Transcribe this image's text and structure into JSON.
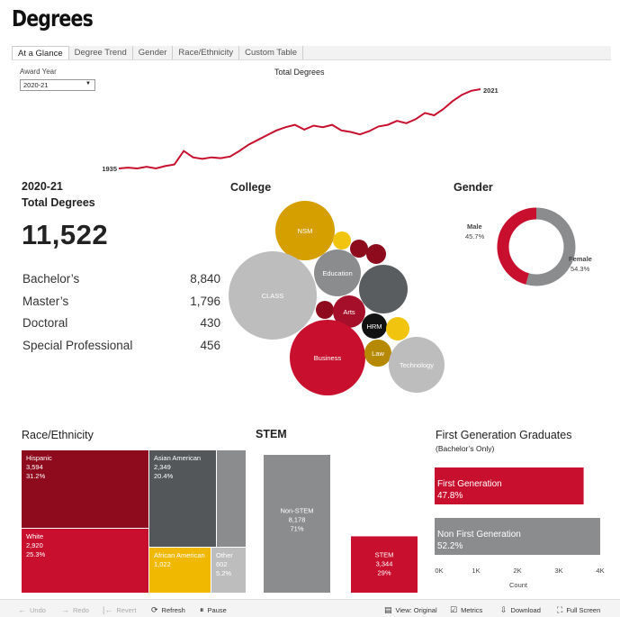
{
  "page": {
    "title": "Degrees"
  },
  "tabs": [
    "At a Glance",
    "Degree Trend",
    "Gender",
    "Race/Ethnicity",
    "Custom Table"
  ],
  "filter": {
    "label": "Award Year",
    "value": "2020-21"
  },
  "trend": {
    "title": "Total Degrees",
    "start_label": "1935",
    "end_label": "2021",
    "series": [
      0.0,
      0.01,
      0.0,
      0.02,
      0.0,
      0.03,
      0.05,
      0.22,
      0.14,
      0.12,
      0.14,
      0.13,
      0.15,
      0.22,
      0.3,
      0.36,
      0.42,
      0.48,
      0.52,
      0.55,
      0.49,
      0.54,
      0.52,
      0.55,
      0.48,
      0.46,
      0.43,
      0.47,
      0.53,
      0.55,
      0.6,
      0.57,
      0.62,
      0.7,
      0.67,
      0.75,
      0.85,
      0.93,
      0.98,
      1.0
    ],
    "color": "#c8102e"
  },
  "summary": {
    "year": "2020-21",
    "label": "Total Degrees",
    "total": "11,522",
    "rows": [
      {
        "label": "Bachelor’s",
        "value": "8,840"
      },
      {
        "label": "Master’s",
        "value": "1,796"
      },
      {
        "label": "Doctoral",
        "value": "430"
      },
      {
        "label": "Special Professional",
        "value": "456"
      }
    ]
  },
  "college": {
    "title": "College",
    "bubbles": [
      {
        "label": "NSM",
        "color": "#d69f00"
      },
      {
        "label": "",
        "color": "#f1c40f"
      },
      {
        "label": "",
        "color": "#8e0b1d"
      },
      {
        "label": "",
        "color": "#8e0b1d"
      },
      {
        "label": "CLASS",
        "color": "#bdbdbd"
      },
      {
        "label": "Education",
        "color": "#8a8c8e"
      },
      {
        "label": "",
        "color": "#5a5d60"
      },
      {
        "label": "",
        "color": "#8e0b1d"
      },
      {
        "label": "Arts",
        "color": "#a50f2a"
      },
      {
        "label": "HRM",
        "color": "#111111"
      },
      {
        "label": "",
        "color": "#f1c40f"
      },
      {
        "label": "Business",
        "color": "#c8102e"
      },
      {
        "label": "Law",
        "color": "#b58900"
      },
      {
        "label": "Technology",
        "color": "#bdbdbd"
      }
    ]
  },
  "gender": {
    "title": "Gender",
    "male_label": "Male",
    "male_pct": "45.7%",
    "male_value": 45.7,
    "male_color": "#c8102e",
    "female_label": "Female",
    "female_pct": "54.3%",
    "female_value": 54.3,
    "female_color": "#8a8c8e"
  },
  "race": {
    "title": "Race/Ethnicity",
    "cells": [
      {
        "name": "Hispanic",
        "count": "3,594",
        "pct": "31.2%",
        "color": "#8e0b1d"
      },
      {
        "name": "Asian American",
        "count": "2,349",
        "pct": "20.4%",
        "color": "#54575a"
      },
      {
        "name": "",
        "count": "",
        "pct": "",
        "color": "#8a8c8e"
      },
      {
        "name": "White",
        "count": "2,920",
        "pct": "25.3%",
        "color": "#c8102e"
      },
      {
        "name": "African American",
        "count": "1,022",
        "pct": "",
        "color": "#f1b800"
      },
      {
        "name": "Other",
        "count": "602",
        "pct": "5.2%",
        "color": "#bdbdbd"
      }
    ]
  },
  "stem": {
    "title": "STEM",
    "bars": [
      {
        "name": "Non-STEM",
        "count": "8,178",
        "pct": "71%",
        "value": 8178,
        "color": "#8a8c8e"
      },
      {
        "name": "STEM",
        "count": "3,344",
        "pct": "29%",
        "value": 3344,
        "color": "#c8102e"
      }
    ]
  },
  "firstgen": {
    "title": "First Generation Graduates",
    "subtitle": "(Bachelor’s Only)",
    "chart_data": {
      "type": "bar",
      "orientation": "horizontal",
      "categories": [
        "First Generation",
        "Non First Generation"
      ],
      "values": [
        3.6,
        4.0
      ],
      "percent_labels": [
        "47.8%",
        "52.2%"
      ],
      "colors": [
        "#c8102e",
        "#8a8c8e"
      ],
      "xlabel": "Count",
      "xlim": [
        0,
        4
      ],
      "ticks": [
        "0K",
        "1K",
        "2K",
        "3K",
        "4K"
      ]
    }
  },
  "toolbar": {
    "undo": "Undo",
    "redo": "Redo",
    "revert": "Revert",
    "refresh": "Refresh",
    "pause": "Pause",
    "view": "View: Original",
    "metrics": "Metrics",
    "download": "Download",
    "fullscreen": "Full Screen"
  }
}
